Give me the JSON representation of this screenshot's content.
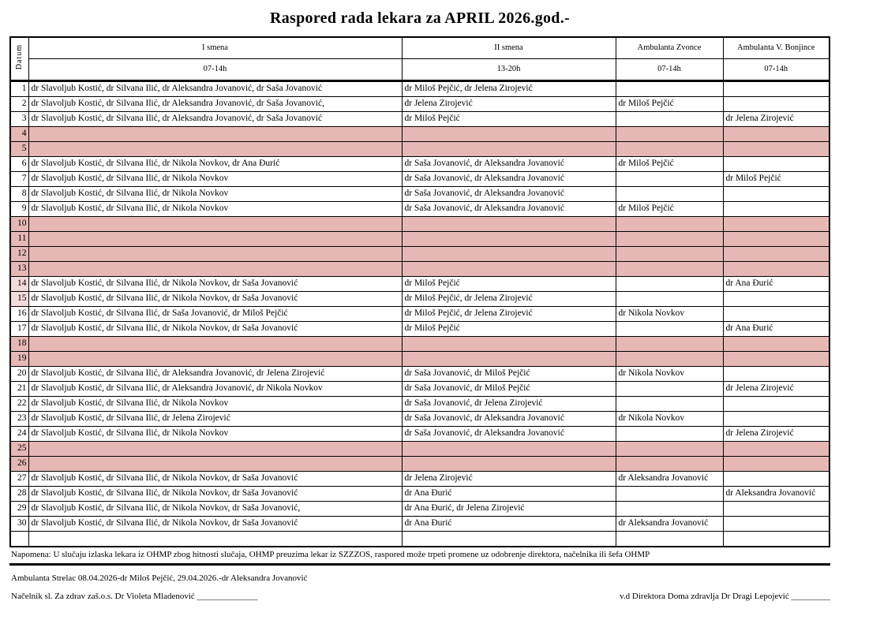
{
  "title": "Raspored rada lekara za APRIL 2026.god.-",
  "colors": {
    "weekend_row": "#e5b8b6",
    "date_tint": "#f2dcdb"
  },
  "table": {
    "datum_label": "Datum",
    "columns": [
      {
        "label": "I smena",
        "hours": "07-14h"
      },
      {
        "label": "II smena",
        "hours": "13-20h"
      },
      {
        "label": "Ambulanta Zvonce",
        "hours": "07-14h"
      },
      {
        "label": "Ambulanta V. Bonjince",
        "hours": "07-14h"
      }
    ],
    "rows": [
      {
        "date": "1",
        "smena1": "dr Slavoljub Kostić, dr Silvana Ilić, dr Aleksandra Jovanović, dr Saša Jovanović",
        "smena2": "dr Miloš Pejčić, dr Jelena Zirojević",
        "zvonce": "",
        "bonjince": "",
        "pink": false,
        "date_tint": false
      },
      {
        "date": "2",
        "smena1": "dr Slavoljub Kostić, dr Silvana Ilić, dr Aleksandra Jovanović, dr Saša Jovanović,",
        "smena2": "dr Jelena Zirojević",
        "zvonce": "dr Miloš Pejčić",
        "bonjince": "",
        "pink": false,
        "date_tint": false
      },
      {
        "date": "3",
        "smena1": "dr Slavoljub Kostić, dr Silvana Ilić, dr Aleksandra Jovanović, dr Saša Jovanović",
        "smena2": "dr Miloš Pejčić",
        "zvonce": "",
        "bonjince": "dr Jelena Zirojević",
        "pink": false,
        "date_tint": false
      },
      {
        "date": "4",
        "smena1": "",
        "smena2": "",
        "zvonce": "",
        "bonjince": "",
        "pink": true,
        "date_tint": false
      },
      {
        "date": "5",
        "smena1": "",
        "smena2": "",
        "zvonce": "",
        "bonjince": "",
        "pink": true,
        "date_tint": false
      },
      {
        "date": "6",
        "smena1": "dr Slavoljub Kostić, dr Silvana Ilić,  dr Nikola Novkov, dr Ana Đurić",
        "smena2": "dr Saša Jovanović, dr Aleksandra Jovanović",
        "zvonce": "dr Miloš Pejčić",
        "bonjince": "",
        "pink": false,
        "date_tint": false
      },
      {
        "date": "7",
        "smena1": "dr Slavoljub Kostić, dr Silvana Ilić,  dr Nikola Novkov",
        "smena2": "dr Saša Jovanović, dr Aleksandra Jovanović",
        "zvonce": "",
        "bonjince": "dr Miloš Pejčić",
        "pink": false,
        "date_tint": false
      },
      {
        "date": "8",
        "smena1": "dr Slavoljub Kostić, dr Silvana Ilić,  dr Nikola Novkov",
        "smena2": "dr Saša Jovanović, dr Aleksandra Jovanović",
        "zvonce": "",
        "bonjince": "",
        "pink": false,
        "date_tint": false
      },
      {
        "date": "9",
        "smena1": "dr Slavoljub Kostić, dr Silvana Ilić,  dr Nikola Novkov",
        "smena2": "dr Saša Jovanović, dr Aleksandra Jovanović",
        "zvonce": "dr Miloš Pejčić",
        "bonjince": "",
        "pink": false,
        "date_tint": false
      },
      {
        "date": "10",
        "smena1": "",
        "smena2": "",
        "zvonce": "",
        "bonjince": "",
        "pink": true,
        "date_tint": false
      },
      {
        "date": "11",
        "smena1": "",
        "smena2": "",
        "zvonce": "",
        "bonjince": "",
        "pink": true,
        "date_tint": false
      },
      {
        "date": "12",
        "smena1": "",
        "smena2": "",
        "zvonce": "",
        "bonjince": "",
        "pink": true,
        "date_tint": false
      },
      {
        "date": "13",
        "smena1": "",
        "smena2": "",
        "zvonce": "",
        "bonjince": "",
        "pink": true,
        "date_tint": false
      },
      {
        "date": "14",
        "smena1": "dr Slavoljub Kostić, dr Silvana Ilić,  dr Nikola Novkov, dr Saša Jovanović",
        "smena2": "dr Miloš Pejčić",
        "zvonce": "",
        "bonjince": "dr Ana Đurić",
        "pink": false,
        "date_tint": true
      },
      {
        "date": "15",
        "smena1": "dr Slavoljub Kostić, dr Silvana Ilić,  dr Nikola Novkov, dr Saša Jovanović",
        "smena2": "dr Miloš Pejčić, dr Jelena Zirojević",
        "zvonce": "",
        "bonjince": "",
        "pink": false,
        "date_tint": true
      },
      {
        "date": "16",
        "smena1": "dr Slavoljub Kostić, dr Silvana Ilić, dr Saša Jovanović, dr Miloš Pejčić",
        "smena2": "dr Miloš Pejčić, dr Jelena Zirojević",
        "zvonce": "dr Nikola Novkov",
        "bonjince": "",
        "pink": false,
        "date_tint": false
      },
      {
        "date": "17",
        "smena1": "dr Slavoljub Kostić, dr Silvana Ilić,  dr Nikola Novkov, dr Saša Jovanović",
        "smena2": "dr Miloš Pejčić",
        "zvonce": "",
        "bonjince": "dr Ana Đurić",
        "pink": false,
        "date_tint": false
      },
      {
        "date": "18",
        "smena1": "",
        "smena2": "",
        "zvonce": "",
        "bonjince": "",
        "pink": true,
        "date_tint": false
      },
      {
        "date": "19",
        "smena1": "",
        "smena2": "",
        "zvonce": "",
        "bonjince": "",
        "pink": true,
        "date_tint": false
      },
      {
        "date": "20",
        "smena1": "dr Slavoljub Kostić, dr Silvana Ilić, dr Aleksandra Jovanović, dr Jelena Zirojević",
        "smena2": "dr Saša Jovanović, dr Miloš Pejčić",
        "zvonce": "dr Nikola Novkov",
        "bonjince": "",
        "pink": false,
        "date_tint": false
      },
      {
        "date": "21",
        "smena1": "dr Slavoljub Kostić, dr Silvana Ilić, dr Aleksandra Jovanović, dr Nikola Novkov",
        "smena2": "dr Saša Jovanović, dr Miloš Pejčić",
        "zvonce": "",
        "bonjince": "dr Jelena Zirojević",
        "pink": false,
        "date_tint": false
      },
      {
        "date": "22",
        "smena1": "dr Slavoljub Kostić, dr Silvana Ilić, dr Nikola Novkov",
        "smena2": "dr Saša Jovanović, dr Jelena Zirojević",
        "zvonce": "",
        "bonjince": "",
        "pink": false,
        "date_tint": false
      },
      {
        "date": "23",
        "smena1": "dr Slavoljub Kostić, dr Silvana Ilić, dr Jelena Zirojević",
        "smena2": "dr Saša Jovanović, dr Aleksandra Jovanović",
        "zvonce": "dr Nikola Novkov",
        "bonjince": "",
        "pink": false,
        "date_tint": false
      },
      {
        "date": "24",
        "smena1": "dr Slavoljub Kostić, dr Silvana Ilić, dr Nikola Novkov",
        "smena2": "dr Saša Jovanović, dr Aleksandra Jovanović",
        "zvonce": "",
        "bonjince": "dr Jelena Zirojević",
        "pink": false,
        "date_tint": false
      },
      {
        "date": "25",
        "smena1": "",
        "smena2": "",
        "zvonce": "",
        "bonjince": "",
        "pink": true,
        "date_tint": false
      },
      {
        "date": "26",
        "smena1": "",
        "smena2": "",
        "zvonce": "",
        "bonjince": "",
        "pink": true,
        "date_tint": false
      },
      {
        "date": "27",
        "smena1": "dr Slavoljub Kostić, dr Silvana Ilić,  dr Nikola Novkov, dr Saša Jovanović",
        "smena2": "dr Jelena Zirojević",
        "zvonce": "dr Aleksandra Jovanović",
        "bonjince": "",
        "pink": false,
        "date_tint": false
      },
      {
        "date": "28",
        "smena1": "dr Slavoljub Kostić, dr Silvana Ilić,  dr Nikola Novkov, dr Saša Jovanović",
        "smena2": "dr Ana Đurić",
        "zvonce": "",
        "bonjince": "dr Aleksandra Jovanović",
        "pink": false,
        "date_tint": false
      },
      {
        "date": "29",
        "smena1": "dr Slavoljub Kostić, dr Silvana Ilić,  dr Nikola Novkov, dr Saša Jovanović,",
        "smena2": "dr Ana Đurić, dr Jelena Zirojević",
        "zvonce": "",
        "bonjince": "",
        "pink": false,
        "date_tint": false
      },
      {
        "date": "30",
        "smena1": "dr Slavoljub Kostić, dr Silvana Ilić,  dr Nikola Novkov, dr Saša Jovanović",
        "smena2": "dr Ana Đurić",
        "zvonce": "dr Aleksandra Jovanović",
        "bonjince": "",
        "pink": false,
        "date_tint": false
      },
      {
        "date": "",
        "smena1": "",
        "smena2": "",
        "zvonce": "",
        "bonjince": "",
        "pink": false,
        "date_tint": false
      }
    ]
  },
  "footer": {
    "napomena": "Napomena: U slučaju izlaska lekara iz OHMP zbog hitnosti slučaja,   OHMP preuzima lekar iz SZZZOS, raspored može trpeti promene uz odobrenje direktora, načelnika ili šefa OHMP",
    "ambulanta_note": "Ambulanta Strelac 08.04.2026-dr Miloš Pejčić, 29.04.2026.-dr Aleksandra Jovanović",
    "left_signature": "Načelnik sl. Za zdrav zaš.o.s.  Dr Violeta Mladenović ______________",
    "right_signature": "v.d Direktora  Doma zdravlja Dr Dragi Lepojević _________"
  }
}
